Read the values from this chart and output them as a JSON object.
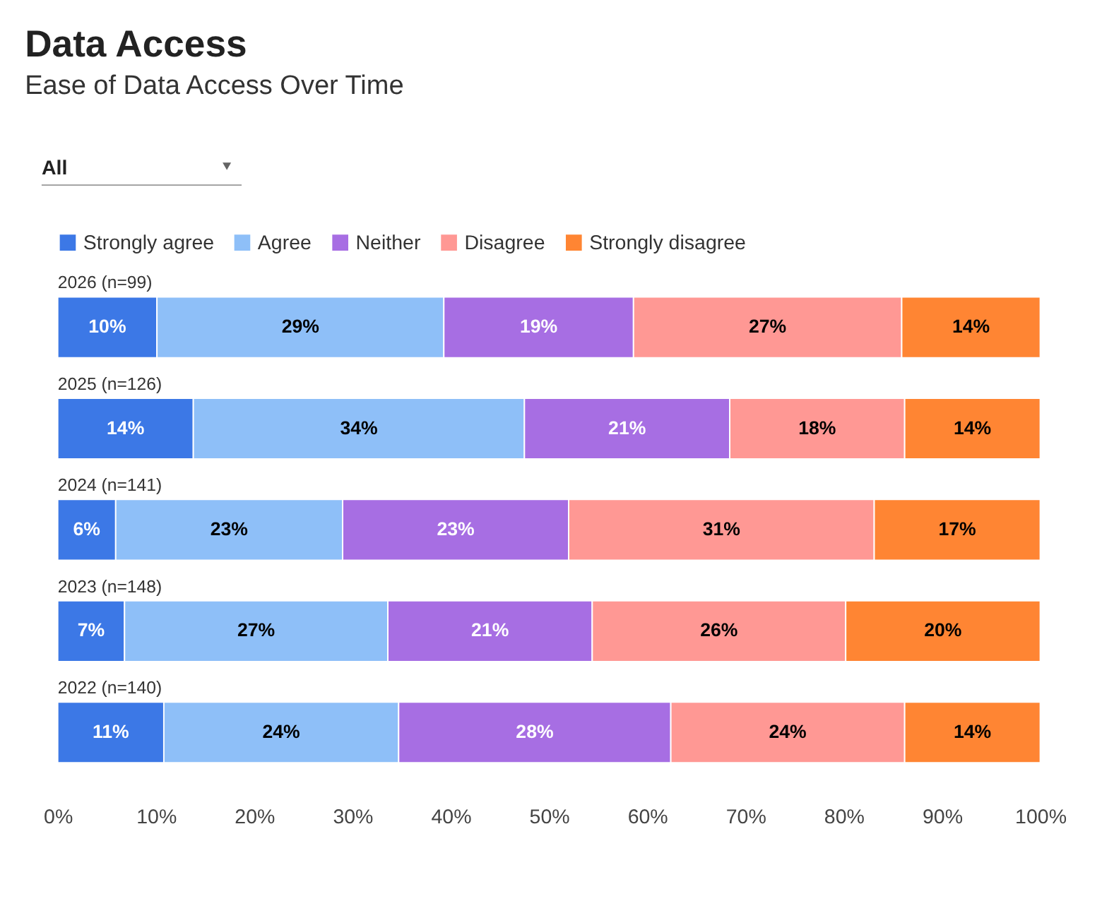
{
  "chart_data": {
    "type": "bar",
    "orientation": "horizontal",
    "stacked": true,
    "title": "Data Access",
    "subtitle": "Ease of Data Access Over Time",
    "annotations": [
      "All"
    ],
    "categories": [
      "2026 (n=99)",
      "2025 (n=126)",
      "2024 (n=141)",
      "2023 (n=148)",
      "2022 (n=140)"
    ],
    "series": [
      {
        "name": "Strongly agree",
        "color": "#3c78e6",
        "values": [
          10.1,
          13.8,
          5.9,
          6.8,
          10.8
        ],
        "value_labels": [
          "10%",
          "14%",
          "6%",
          "7%",
          "11%"
        ]
      },
      {
        "name": "Agree",
        "color": "#8ebff8",
        "values": [
          29.2,
          33.7,
          23.1,
          26.8,
          23.9
        ],
        "value_labels": [
          "29%",
          "34%",
          "23%",
          "27%",
          "24%"
        ]
      },
      {
        "name": "Neither",
        "color": "#a76ee3",
        "values": [
          19.3,
          20.9,
          23.0,
          20.8,
          27.7
        ],
        "value_labels": [
          "19%",
          "21%",
          "23%",
          "21%",
          "28%"
        ]
      },
      {
        "name": "Disagree",
        "color": "#ff9894",
        "values": [
          27.3,
          17.8,
          31.1,
          25.8,
          23.8
        ],
        "value_labels": [
          "27%",
          "18%",
          "31%",
          "26%",
          "24%"
        ]
      },
      {
        "name": "Strongly disagree",
        "color": "#ff8533",
        "values": [
          14.1,
          13.8,
          16.9,
          19.8,
          13.8
        ],
        "value_labels": [
          "14%",
          "14%",
          "17%",
          "20%",
          "14%"
        ]
      }
    ],
    "xlim": [
      0,
      100
    ],
    "xticks": [
      {
        "value": 0,
        "label": "0%"
      },
      {
        "value": 10,
        "label": "10%"
      },
      {
        "value": 20,
        "label": "20%"
      },
      {
        "value": 30,
        "label": "30%"
      },
      {
        "value": 40,
        "label": "40%"
      },
      {
        "value": 50,
        "label": "50%"
      },
      {
        "value": 60,
        "label": "60%"
      },
      {
        "value": 70,
        "label": "70%"
      },
      {
        "value": 80,
        "label": "80%"
      },
      {
        "value": 90,
        "label": "90%"
      },
      {
        "value": 100,
        "label": "100%"
      }
    ],
    "grid": false,
    "legend": "top left"
  }
}
